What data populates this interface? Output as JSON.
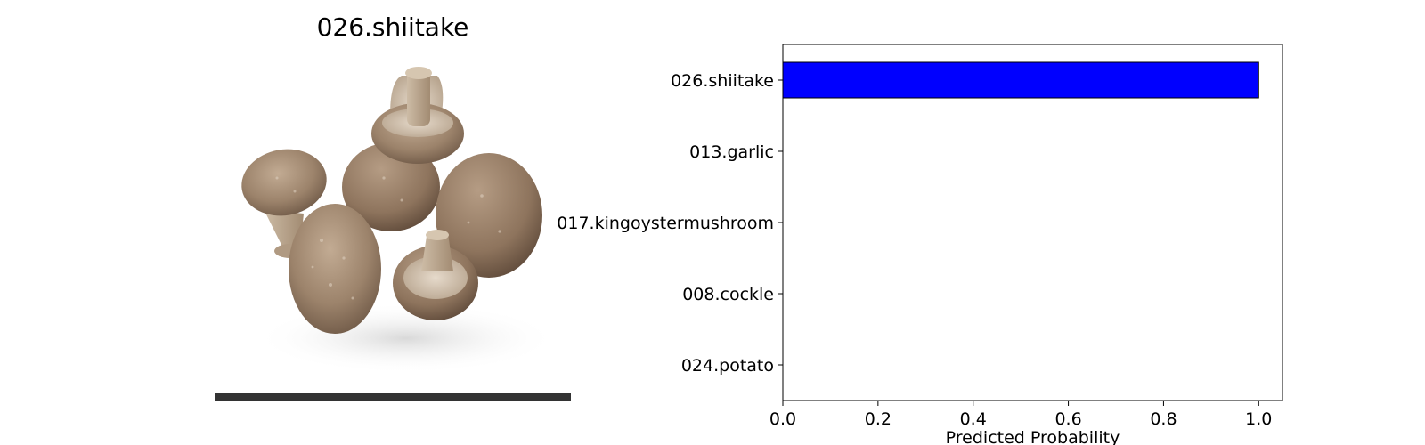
{
  "image_panel": {
    "title": "026.shiitake",
    "subject_icon": "shiitake-mushrooms-photo"
  },
  "chart_data": {
    "type": "bar",
    "orientation": "horizontal",
    "categories": [
      "026.shiitake",
      "013.garlic",
      "017.kingoystermushroom",
      "008.cockle",
      "024.potato"
    ],
    "values": [
      1.0,
      0.0,
      0.0,
      0.0,
      0.0
    ],
    "xlabel": "Predicted Probability",
    "ylabel": "",
    "xlim": [
      0,
      1.05
    ],
    "xticks": [
      "0.0",
      "0.2",
      "0.4",
      "0.6",
      "0.8",
      "1.0"
    ],
    "grid": false,
    "bar_color": "#0000ff",
    "edge_color": "#000000"
  }
}
